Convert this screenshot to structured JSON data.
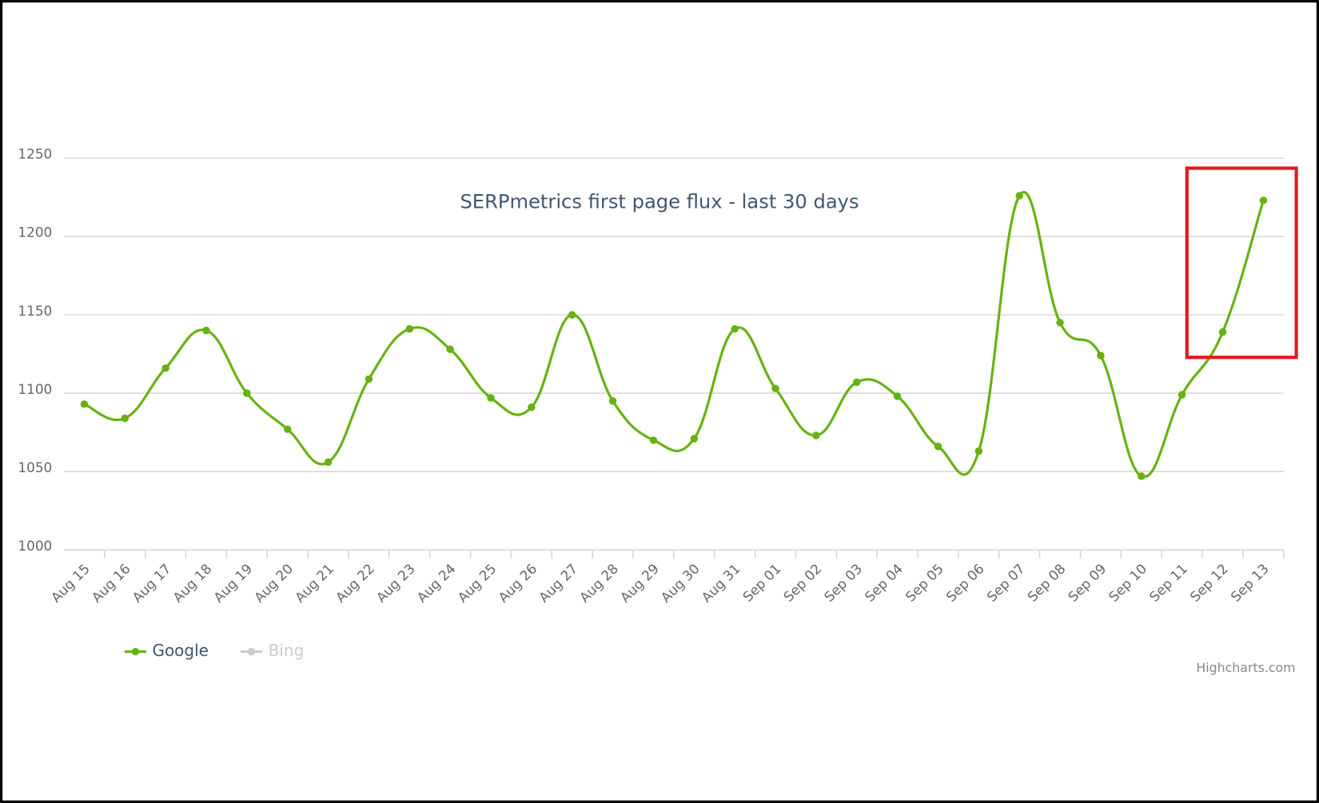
{
  "chart_data": {
    "type": "line",
    "title": "SERPmetrics first page flux - last 30 days",
    "categories": [
      "Aug 15",
      "Aug 16",
      "Aug 17",
      "Aug 18",
      "Aug 19",
      "Aug 20",
      "Aug 21",
      "Aug 22",
      "Aug 23",
      "Aug 24",
      "Aug 25",
      "Aug 26",
      "Aug 27",
      "Aug 28",
      "Aug 29",
      "Aug 30",
      "Aug 31",
      "Sep 01",
      "Sep 02",
      "Sep 03",
      "Sep 04",
      "Sep 05",
      "Sep 06",
      "Sep 07",
      "Sep 08",
      "Sep 09",
      "Sep 10",
      "Sep 11",
      "Sep 12",
      "Sep 13"
    ],
    "series": [
      {
        "name": "Google",
        "color": "#66b20e",
        "visible": true,
        "values": [
          1093,
          1084,
          1116,
          1140,
          1100,
          1077,
          1056,
          1109,
          1141,
          1128,
          1097,
          1091,
          1150,
          1095,
          1070,
          1071,
          1141,
          1103,
          1073,
          1107,
          1098,
          1066,
          1063,
          1226,
          1145,
          1124,
          1047,
          1099,
          1139,
          1223
        ]
      },
      {
        "name": "Bing",
        "color": "#cccccc",
        "visible": false,
        "values": [
          null,
          null,
          null,
          null,
          null,
          null,
          null,
          null,
          null,
          null,
          null,
          null,
          null,
          null,
          null,
          null,
          null,
          null,
          null,
          null,
          null,
          null,
          null,
          null,
          null,
          null,
          null,
          null,
          null,
          null
        ]
      }
    ],
    "ylim": [
      1000,
      1250
    ],
    "yticks": [
      1000,
      1050,
      1100,
      1150,
      1200,
      1250
    ],
    "grid": true,
    "legend": "bottom-left",
    "credit": "Highcharts.com"
  }
}
